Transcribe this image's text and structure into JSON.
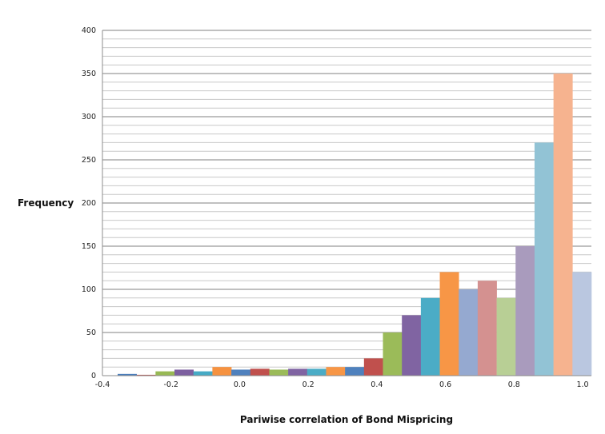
{
  "chart_data": {
    "type": "bar",
    "title": "",
    "xlabel": "Pariwise correlation of Bond Mispricing",
    "ylabel": "Frequency",
    "ylim": [
      0,
      400
    ],
    "xlim": [
      -0.4,
      1.0
    ],
    "y_ticks": [
      "0",
      "50",
      "100",
      "150",
      "200",
      "250",
      "300",
      "350",
      "400"
    ],
    "x_ticks": [
      "-0.4",
      "-0.2",
      "0.0",
      "0.2",
      "0.4",
      "0.6",
      "0.8",
      "1.0"
    ],
    "grid": {
      "major_every": 50,
      "minor_every": 10
    },
    "legend": null,
    "categories": [
      "-0.35",
      "-0.30",
      "-0.25",
      "-0.20",
      "-0.15",
      "-0.10",
      "-0.05",
      "0.00",
      "0.05",
      "0.10",
      "0.15",
      "0.20",
      "0.25",
      "0.30",
      "0.35",
      "0.40",
      "0.45",
      "0.50",
      "0.55",
      "0.60",
      "0.65",
      "0.70",
      "0.75",
      "0.80",
      "0.85"
    ],
    "values": [
      2,
      1,
      5,
      7,
      5,
      10,
      7,
      8,
      7,
      8,
      8,
      10,
      10,
      20,
      50,
      70,
      90,
      120,
      100,
      110,
      90,
      150,
      270,
      350,
      120
    ],
    "colors": [
      "#4a7ebb",
      "#be4b48",
      "#98b954",
      "#7d60a0",
      "#46aac5",
      "#f69240",
      "#4f81bd",
      "#c0504d",
      "#9bbb59",
      "#8064a2",
      "#4bacc6",
      "#f79646",
      "#4f81bd",
      "#c0504d",
      "#9bbb59",
      "#8064a2",
      "#4bacc6",
      "#f79646",
      "#95a9d0",
      "#d49190",
      "#b8cf95",
      "#a99bbd",
      "#92c3d5",
      "#f6b38f",
      "#bac7e0"
    ]
  }
}
